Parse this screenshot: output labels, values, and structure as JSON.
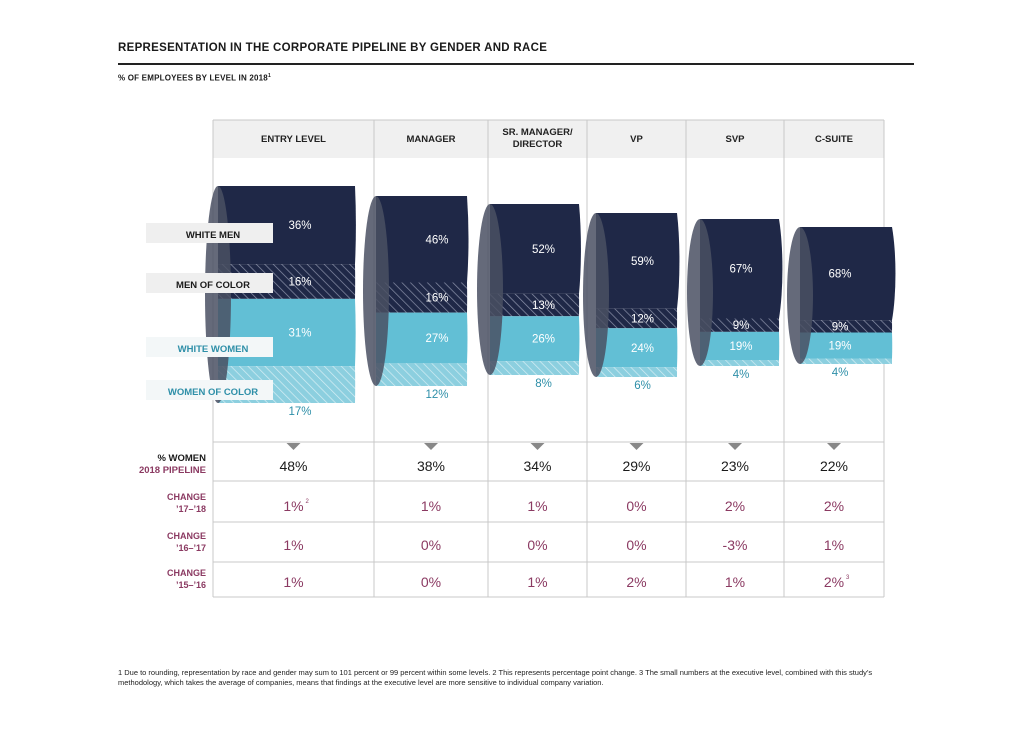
{
  "title": "REPRESENTATION IN THE CORPORATE PIPELINE BY GENDER AND RACE",
  "subtitle": "% OF EMPLOYEES BY LEVEL IN 2018",
  "subtitle_sup": "1",
  "colors": {
    "white_men": "#1f2847",
    "men_of_color": "#1f2847",
    "white_women": "#62bfd5",
    "women_of_color": "#8ccfdf",
    "change": "#8b3a62"
  },
  "chart_data": {
    "type": "area",
    "categories": [
      "ENTRY LEVEL",
      "MANAGER",
      "SR. MANAGER/\nDIRECTOR",
      "VP",
      "SVP",
      "C-SUITE"
    ],
    "series": [
      {
        "name": "WHITE MEN",
        "values": [
          36,
          46,
          52,
          59,
          67,
          68
        ]
      },
      {
        "name": "MEN OF COLOR",
        "values": [
          16,
          16,
          13,
          12,
          9,
          9
        ]
      },
      {
        "name": "WHITE WOMEN",
        "values": [
          31,
          27,
          26,
          24,
          19,
          19
        ]
      },
      {
        "name": "WOMEN OF COLOR",
        "values": [
          17,
          12,
          8,
          6,
          4,
          4
        ]
      }
    ],
    "value_labels": {
      "WHITE MEN": [
        "36%",
        "46%",
        "52%",
        "59%",
        "67%",
        "68%"
      ],
      "MEN OF COLOR": [
        "16%",
        "16%",
        "13%",
        "12%",
        "9%",
        "9%"
      ],
      "WHITE WOMEN": [
        "31%",
        "27%",
        "26%",
        "24%",
        "19%",
        "19%"
      ],
      "WOMEN OF COLOR": [
        "17%",
        "12%",
        "8%",
        "6%",
        "4%",
        "4%"
      ]
    },
    "table": [
      {
        "label": "% WOMEN",
        "label2": "2018 PIPELINE",
        "values": [
          "48%",
          "38%",
          "34%",
          "29%",
          "23%",
          "22%"
        ],
        "notes": [
          "",
          "",
          "",
          "",
          "",
          ""
        ]
      },
      {
        "label": "CHANGE",
        "label2": "’17–’18",
        "values": [
          "1%",
          "1%",
          "1%",
          "0%",
          "2%",
          "2%"
        ],
        "notes": [
          "2",
          "",
          "",
          "",
          "",
          ""
        ]
      },
      {
        "label": "CHANGE",
        "label2": "’16–’17",
        "values": [
          "1%",
          "0%",
          "0%",
          "0%",
          "-3%",
          "1%"
        ],
        "notes": [
          "",
          "",
          "",
          "",
          "",
          ""
        ]
      },
      {
        "label": "CHANGE",
        "label2": "’15–’16",
        "values": [
          "1%",
          "0%",
          "1%",
          "2%",
          "1%",
          "2%"
        ],
        "notes": [
          "",
          "",
          "",
          "",
          "",
          "3"
        ]
      }
    ]
  },
  "footnote": "1 Due to rounding, representation by race and gender may sum to 101 percent or 99 percent within some levels.  2 This represents percentage point change.  3 The small numbers at the executive level, combined with this study’s methodology, which takes the average of companies, means that findings at the executive level are more sensitive to individual company variation."
}
